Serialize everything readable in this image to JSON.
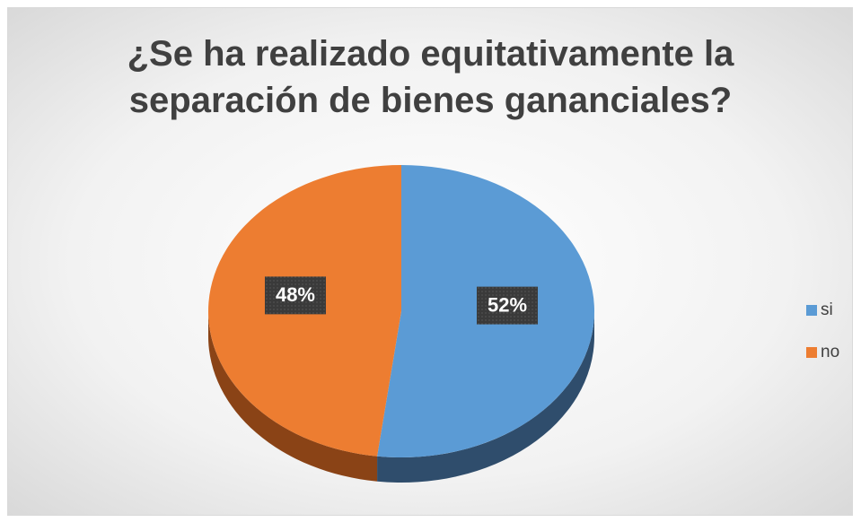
{
  "chart_data": {
    "type": "pie",
    "title": "¿Se ha realizado equitativamente la separación de bienes gananciales?",
    "categories": [
      "si",
      "no"
    ],
    "values": [
      52,
      48
    ],
    "value_labels": [
      "52%",
      "48%"
    ],
    "colors": [
      "#5b9bd5",
      "#ed7d31"
    ],
    "side_colors": [
      "#2f4d6c",
      "#8a4316"
    ],
    "legend": "right"
  }
}
